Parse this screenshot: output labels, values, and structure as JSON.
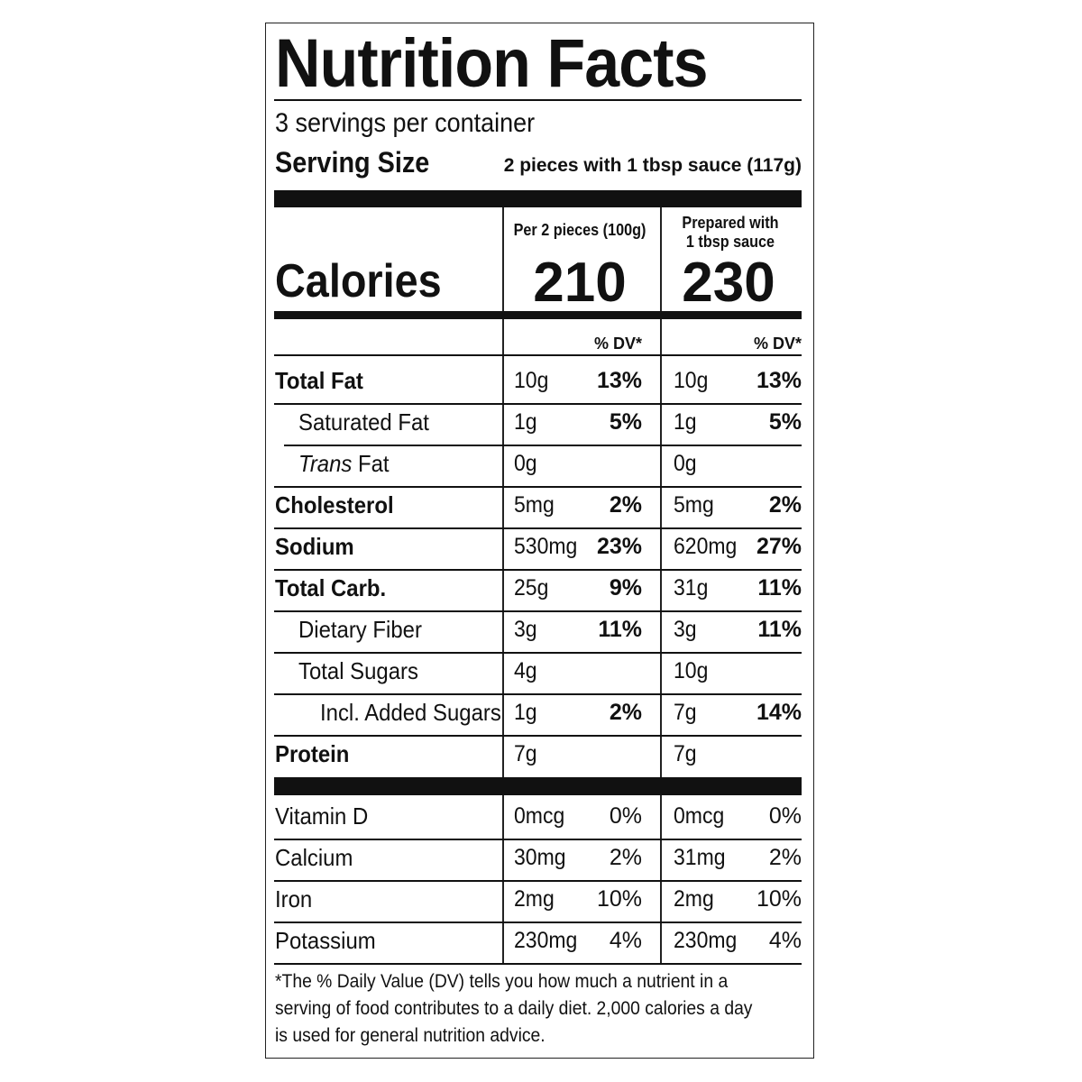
{
  "title": "Nutrition Facts",
  "servings_per_container": "3 servings per container",
  "serving_size": {
    "label": "Serving Size",
    "value": "2 pieces with 1 tbsp sauce (117g)"
  },
  "calories": {
    "label": "Calories",
    "col1_header": "Per 2 pieces (100g)",
    "col2_header_line1": "Prepared with",
    "col2_header_line2": "1 tbsp sauce",
    "col1_value": "210",
    "col2_value": "230"
  },
  "dv_header": "% DV*",
  "nutrients": [
    {
      "label": "Total Fat",
      "c1_amt": "10g",
      "c1_pct": "13%",
      "c2_amt": "10g",
      "c2_pct": "13%"
    },
    {
      "label": "Saturated Fat",
      "c1_amt": "1g",
      "c1_pct": "5%",
      "c2_amt": "1g",
      "c2_pct": "5%"
    },
    {
      "label_italic": "Trans",
      "label_rest": " Fat",
      "c1_amt": "0g",
      "c1_pct": "",
      "c2_amt": "0g",
      "c2_pct": ""
    },
    {
      "label": "Cholesterol",
      "c1_amt": "5mg",
      "c1_pct": "2%",
      "c2_amt": "5mg",
      "c2_pct": "2%"
    },
    {
      "label": "Sodium",
      "c1_amt": "530mg",
      "c1_pct": "23%",
      "c2_amt": "620mg",
      "c2_pct": "27%"
    },
    {
      "label": "Total Carb.",
      "c1_amt": "25g",
      "c1_pct": "9%",
      "c2_amt": "31g",
      "c2_pct": "11%"
    },
    {
      "label": "Dietary Fiber",
      "c1_amt": "3g",
      "c1_pct": "11%",
      "c2_amt": "3g",
      "c2_pct": "11%"
    },
    {
      "label": "Total Sugars",
      "c1_amt": "4g",
      "c1_pct": "",
      "c2_amt": "10g",
      "c2_pct": ""
    },
    {
      "label": "Incl. Added Sugars",
      "c1_amt": "1g",
      "c1_pct": "2%",
      "c2_amt": "7g",
      "c2_pct": "14%"
    },
    {
      "label": "Protein",
      "c1_amt": "7g",
      "c1_pct": "",
      "c2_amt": "7g",
      "c2_pct": ""
    }
  ],
  "vitamins": [
    {
      "label": "Vitamin D",
      "c1_amt": "0mcg",
      "c1_pct": "0%",
      "c2_amt": "0mcg",
      "c2_pct": "0%"
    },
    {
      "label": "Calcium",
      "c1_amt": "30mg",
      "c1_pct": "2%",
      "c2_amt": "31mg",
      "c2_pct": "2%"
    },
    {
      "label": "Iron",
      "c1_amt": "2mg",
      "c1_pct": "10%",
      "c2_amt": "2mg",
      "c2_pct": "10%"
    },
    {
      "label": "Potassium",
      "c1_amt": "230mg",
      "c1_pct": "4%",
      "c2_amt": "230mg",
      "c2_pct": "4%"
    }
  ],
  "footnote": "*The % Daily Value (DV) tells you how much a nutrient in a serving of food contributes to a daily diet. 2,000 calories a day is used for general nutrition advice."
}
